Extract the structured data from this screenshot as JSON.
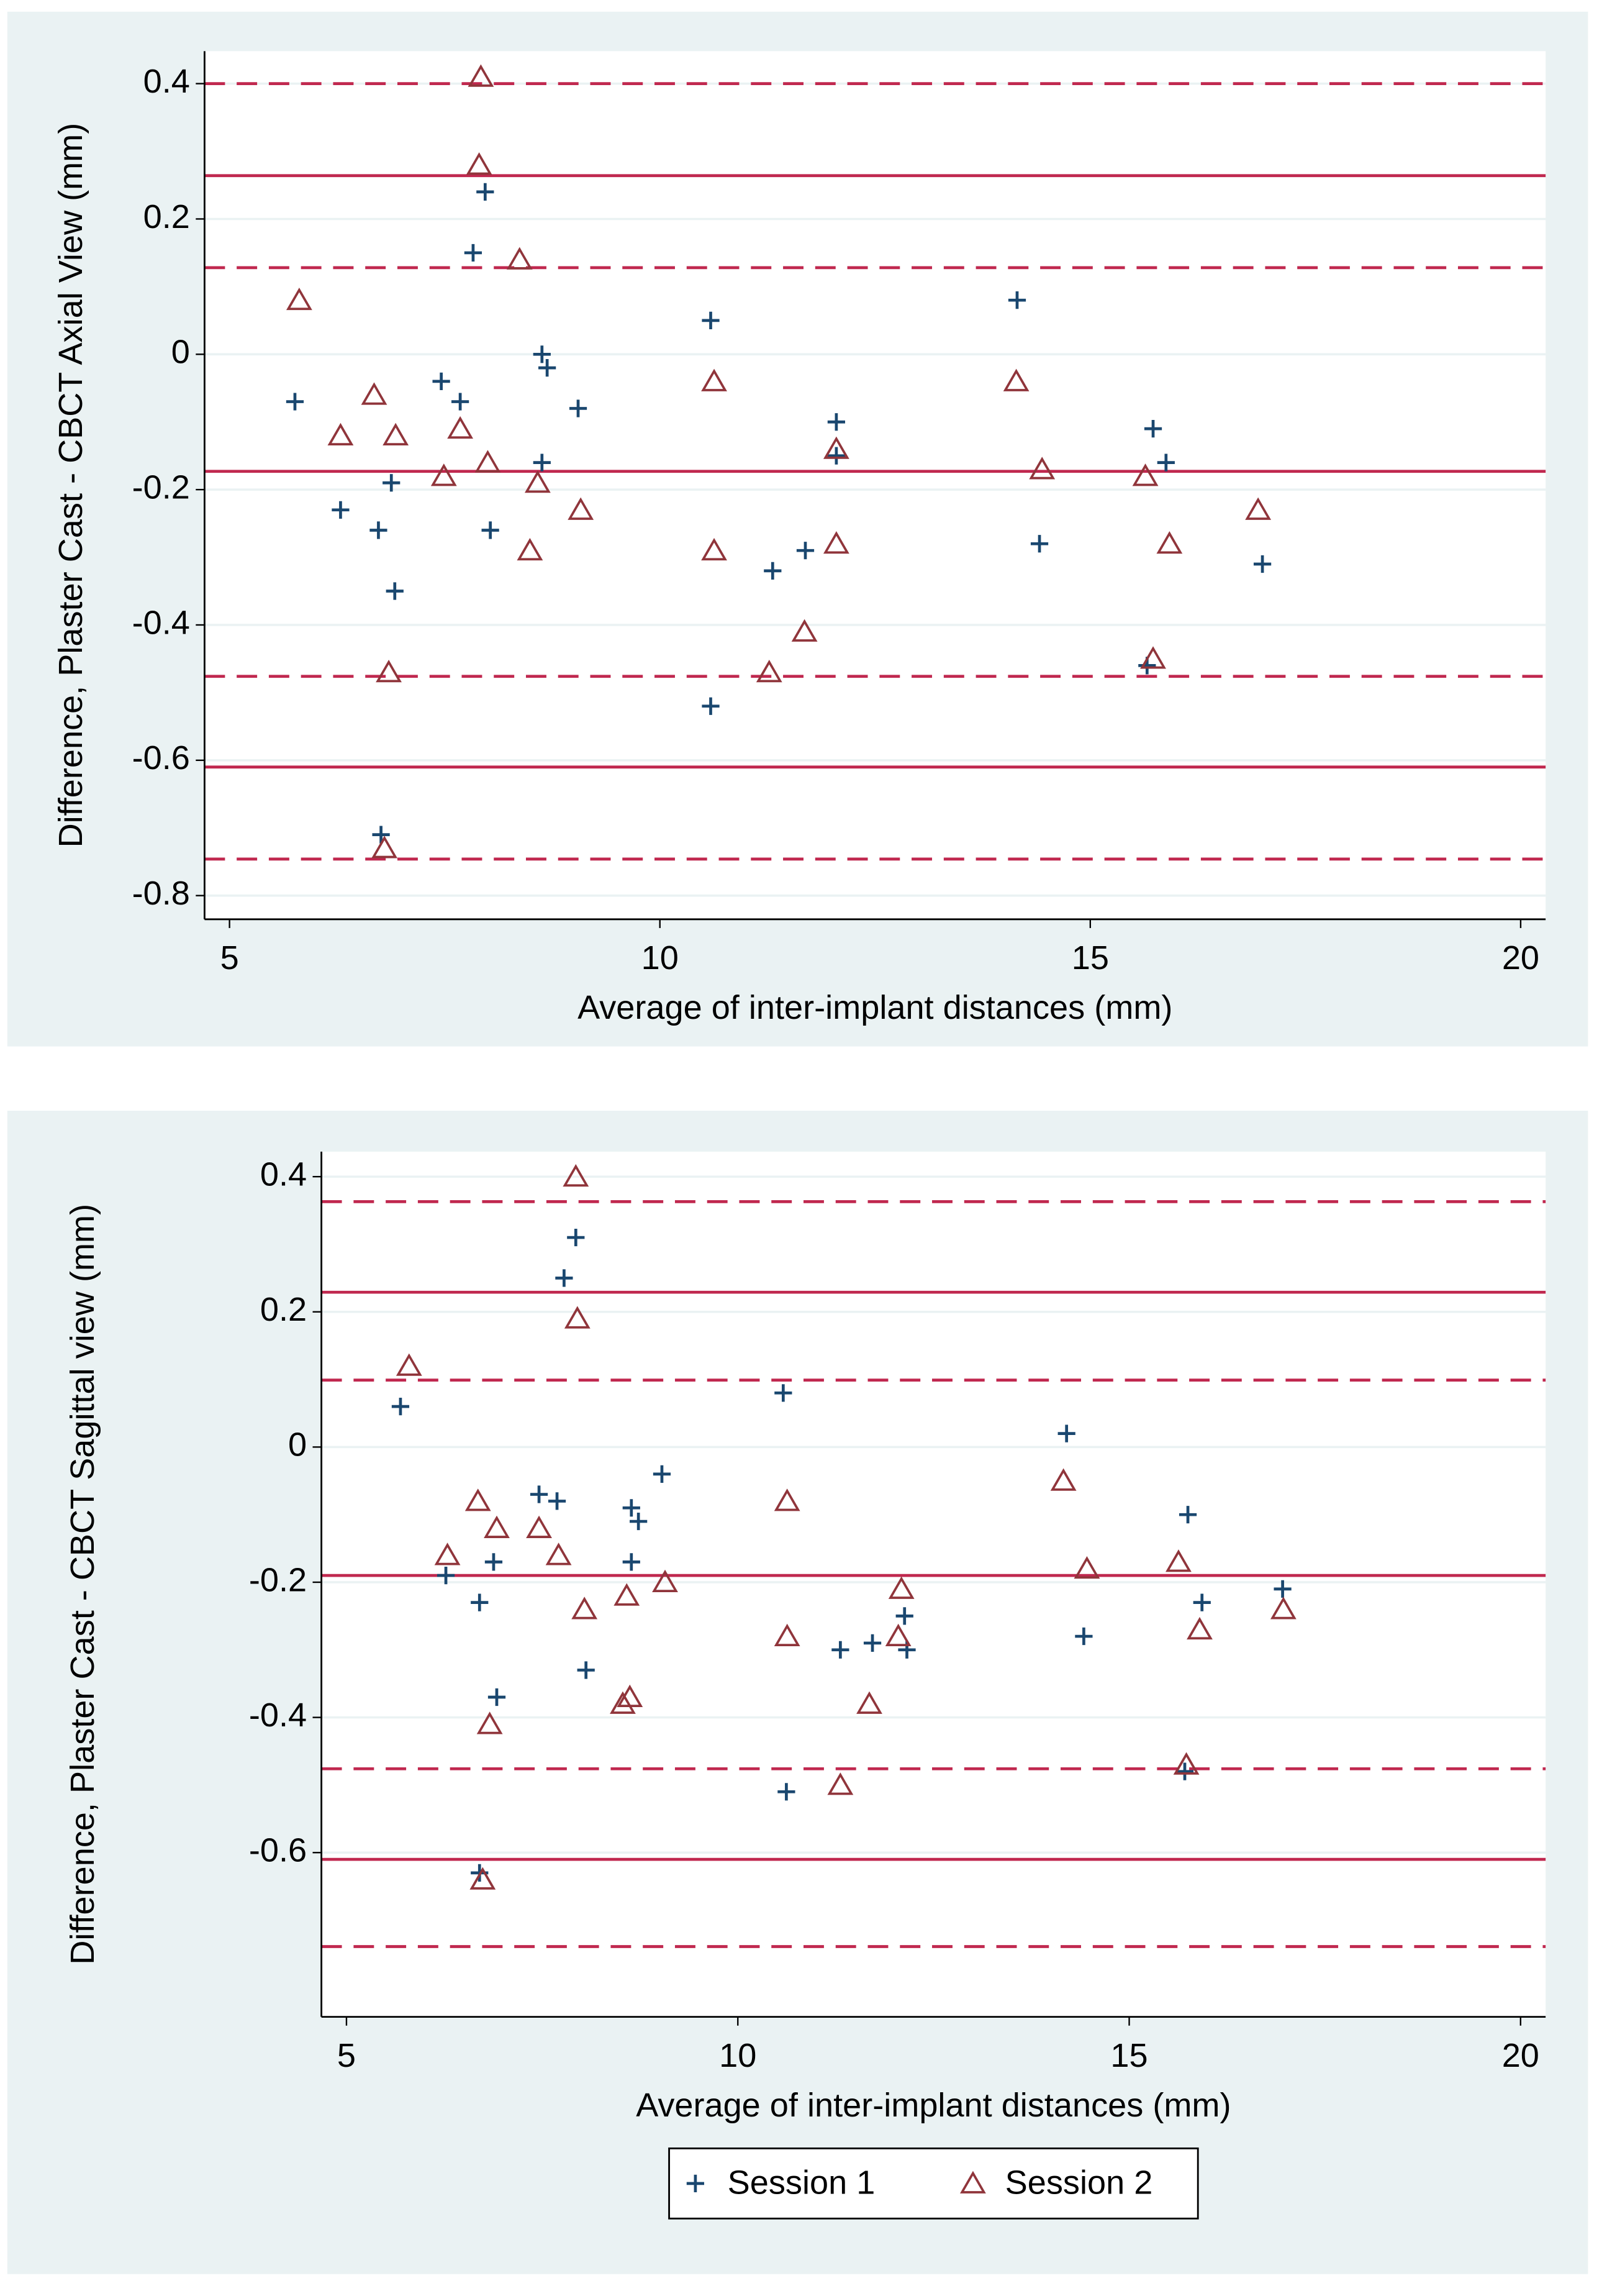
{
  "chart_data": [
    {
      "type": "scatter",
      "x_label": "Average of inter-implant distances (mm)",
      "y_label": "Difference, Plaster Cast - CBCT Axial View (mm)",
      "xlim": [
        4.71,
        20.29
      ],
      "xticks": [
        5,
        10,
        15,
        20
      ],
      "ylim": [
        -0.835,
        0.448
      ],
      "yticks": [
        0.4,
        0.2,
        0,
        -0.2,
        -0.4,
        -0.6,
        -0.8
      ],
      "grid": true,
      "reference_lines": [
        {
          "value": 0.4,
          "style": "dashed"
        },
        {
          "value": 0.264,
          "style": "solid"
        },
        {
          "value": 0.128,
          "style": "dashed"
        },
        {
          "value": -0.173,
          "style": "solid"
        },
        {
          "value": -0.476,
          "style": "dashed"
        },
        {
          "value": -0.61,
          "style": "solid"
        },
        {
          "value": -0.746,
          "style": "dashed"
        }
      ],
      "reference_color": "#c0284f",
      "series": [
        {
          "color": "#1a476f",
          "marker": "plus",
          "x": [
            5.76,
            6.29,
            6.73,
            6.88,
            6.92,
            6.76,
            7.46,
            7.68,
            7.83,
            7.97,
            8.03,
            8.63,
            8.69,
            8.63,
            9.05,
            10.59,
            10.59,
            11.31,
            11.69,
            12.05,
            12.05,
            14.15,
            14.41,
            15.73,
            15.88,
            15.66,
            17.0
          ],
          "values": [
            -0.07,
            -0.23,
            -0.26,
            -0.19,
            -0.35,
            -0.71,
            -0.04,
            -0.07,
            0.15,
            0.24,
            -0.26,
            0,
            -0.02,
            -0.16,
            -0.08,
            0.05,
            -0.52,
            -0.32,
            -0.29,
            -0.1,
            -0.15,
            0.08,
            -0.28,
            -0.11,
            -0.16,
            -0.46,
            -0.31
          ]
        },
        {
          "color": "#90353b",
          "marker": "triangle",
          "x": [
            5.81,
            6.29,
            6.68,
            6.93,
            6.85,
            6.8,
            7.49,
            7.68,
            7.92,
            7.9,
            8.0,
            8.37,
            8.49,
            8.58,
            9.08,
            10.63,
            10.63,
            11.27,
            11.68,
            12.05,
            12.05,
            14.14,
            14.44,
            15.64,
            15.73,
            15.92,
            16.95
          ],
          "values": [
            0.08,
            -0.12,
            -0.06,
            -0.12,
            -0.47,
            -0.73,
            -0.18,
            -0.11,
            0.41,
            0.28,
            -0.16,
            0.14,
            -0.29,
            -0.19,
            -0.23,
            -0.04,
            -0.29,
            -0.47,
            -0.41,
            -0.14,
            -0.28,
            -0.04,
            -0.17,
            -0.18,
            -0.45,
            -0.28,
            -0.23
          ]
        }
      ]
    },
    {
      "type": "scatter",
      "x_label": "Average of inter-implant distances (mm)",
      "y_label": "Difference, Plaster Cast - CBCT Sagittal view (mm)",
      "xlim": [
        4.68,
        20.32
      ],
      "xticks": [
        5,
        10,
        15,
        20
      ],
      "ylim": [
        -0.843,
        0.437
      ],
      "yticks": [
        0.4,
        0.2,
        0,
        -0.2,
        -0.4,
        -0.6
      ],
      "grid": true,
      "legend": "bottom",
      "reference_lines": [
        {
          "value": 0.363,
          "style": "dashed"
        },
        {
          "value": 0.229,
          "style": "solid"
        },
        {
          "value": 0.099,
          "style": "dashed"
        },
        {
          "value": -0.19,
          "style": "solid"
        },
        {
          "value": -0.476,
          "style": "dashed"
        },
        {
          "value": -0.61,
          "style": "solid"
        },
        {
          "value": -0.739,
          "style": "dashed"
        }
      ],
      "reference_color": "#c0284f",
      "series": [
        {
          "name": "Session 1",
          "color": "#1a476f",
          "marker": "plus",
          "x": [
            5.69,
            6.27,
            6.7,
            6.7,
            6.88,
            6.92,
            7.46,
            7.69,
            7.78,
            7.93,
            8.06,
            8.64,
            8.73,
            8.64,
            9.03,
            10.58,
            10.62,
            11.31,
            11.72,
            12.13,
            12.16,
            14.2,
            14.42,
            15.75,
            15.93,
            15.71,
            16.96
          ],
          "values": [
            0.06,
            -0.19,
            -0.23,
            -0.63,
            -0.17,
            -0.37,
            -0.07,
            -0.08,
            0.25,
            0.31,
            -0.33,
            -0.09,
            -0.11,
            -0.17,
            -0.04,
            0.08,
            -0.51,
            -0.3,
            -0.29,
            -0.25,
            -0.3,
            0.02,
            -0.28,
            -0.1,
            -0.23,
            -0.48,
            -0.21
          ]
        },
        {
          "name": "Session 2",
          "color": "#90353b",
          "marker": "triangle",
          "x": [
            5.8,
            6.29,
            6.68,
            6.92,
            6.83,
            6.74,
            7.46,
            7.71,
            7.93,
            7.95,
            8.04,
            8.53,
            8.62,
            8.58,
            9.07,
            10.63,
            10.63,
            11.31,
            11.68,
            12.09,
            12.05,
            14.16,
            14.46,
            15.63,
            15.73,
            15.9,
            16.97
          ],
          "values": [
            0.12,
            -0.16,
            -0.08,
            -0.12,
            -0.41,
            -0.64,
            -0.12,
            -0.16,
            0.4,
            0.19,
            -0.24,
            -0.38,
            -0.37,
            -0.22,
            -0.2,
            -0.08,
            -0.28,
            -0.5,
            -0.38,
            -0.21,
            -0.28,
            -0.05,
            -0.18,
            -0.17,
            -0.47,
            -0.27,
            -0.24
          ]
        }
      ]
    }
  ]
}
